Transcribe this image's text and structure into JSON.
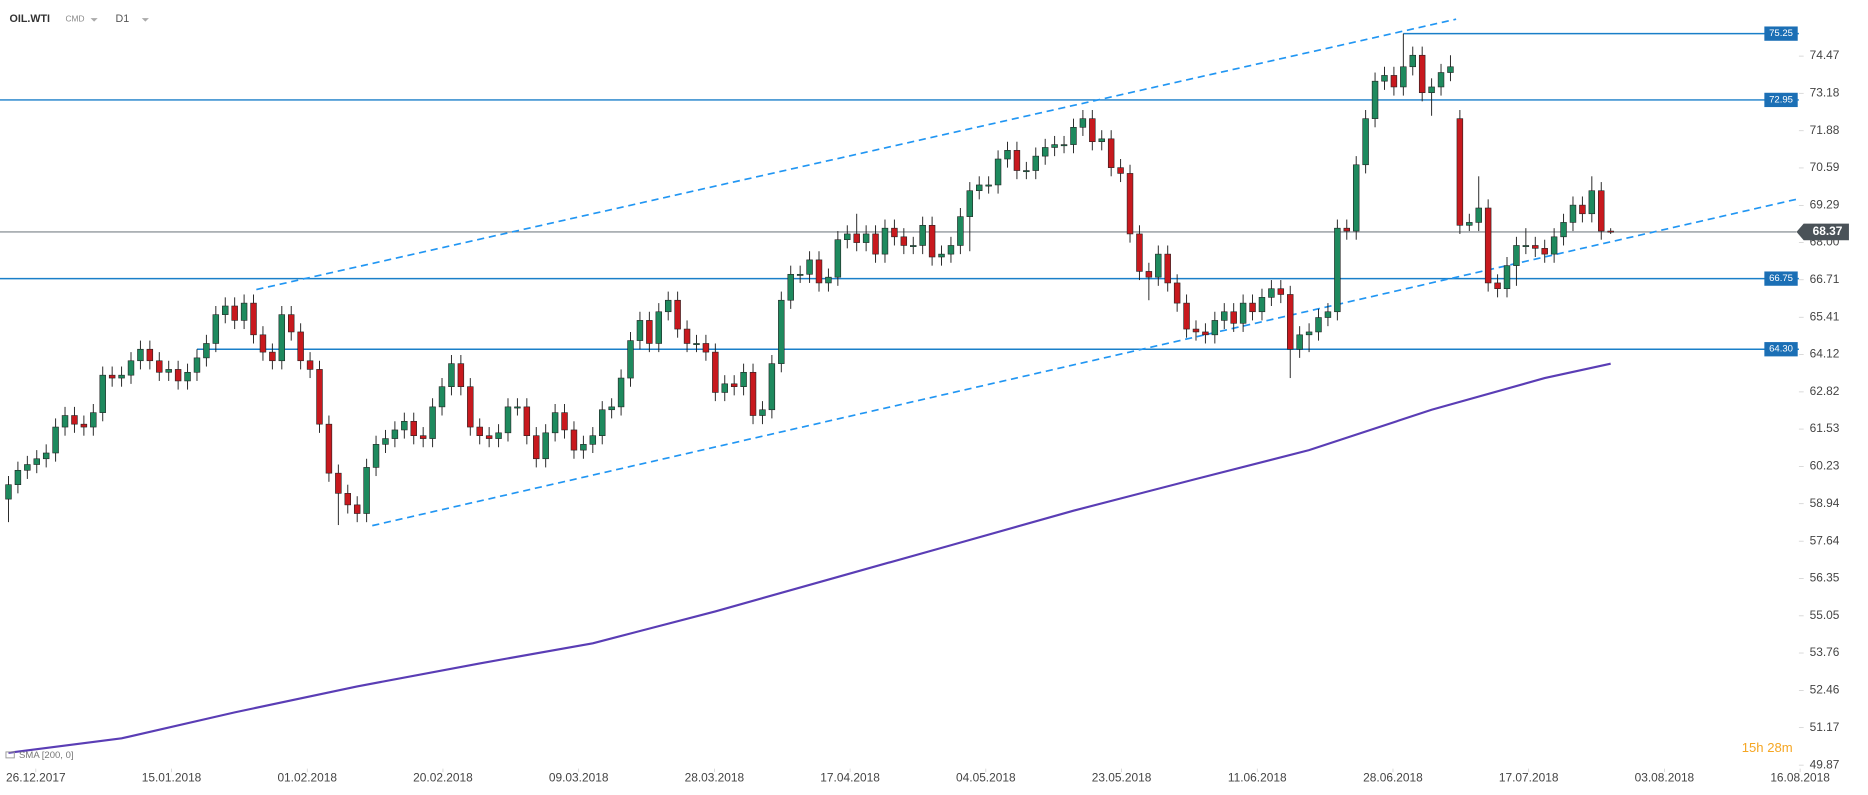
{
  "chart_data": {
    "type": "candlestick",
    "symbol": "OIL.WTI",
    "market": "CMD",
    "interval": "D1",
    "indicator": "SMA [200, 0]",
    "timer": "15h 28m",
    "xlim": [
      -0.9,
      192.5
    ],
    "ylim": [
      49.75,
      76.41
    ],
    "yticks": [
      74.47,
      73.18,
      71.88,
      70.59,
      69.29,
      {
        "value": 68,
        "label": "68.00"
      },
      66.71,
      65.41,
      64.12,
      62.82,
      61.53,
      60.23,
      58.94,
      57.64,
      56.35,
      55.05,
      53.76,
      52.46,
      51.17,
      49.87
    ],
    "xticks": [
      {
        "value": 2.9,
        "label": "26.12.2017"
      },
      {
        "value": 17.3,
        "label": "15.01.2018"
      },
      {
        "value": 31.7,
        "label": "01.02.2018"
      },
      {
        "value": 46.1,
        "label": "20.02.2018"
      },
      {
        "value": 60.5,
        "label": "09.03.2018"
      },
      {
        "value": 74.9,
        "label": "28.03.2018"
      },
      {
        "value": 89.3,
        "label": "17.04.2018"
      },
      {
        "value": 103.7,
        "label": "04.05.2018"
      },
      {
        "value": 118.1,
        "label": "23.05.2018"
      },
      {
        "value": 132.5,
        "label": "11.06.2018"
      },
      {
        "value": 146.9,
        "label": "28.06.2018"
      },
      {
        "value": 161.3,
        "label": "17.07.2018"
      },
      {
        "value": 175.7,
        "label": "03.08.2018"
      },
      {
        "value": 190.1,
        "label": "16.08.2018"
      }
    ],
    "up_color": "#1e8a5e",
    "down_color": "#c8191e",
    "levels": [
      75.25,
      72.95,
      66.75,
      {
        "value": 64.3,
        "label": "64.30"
      }
    ],
    "level_color": "#1a7fc9",
    "last_price": 68.37,
    "trendlines": [
      {
        "x": [
          26.3,
          153.6
        ],
        "y": [
          66.37,
          75.75
        ]
      },
      {
        "x": [
          38.6,
          189.8
        ],
        "y": [
          58.18,
          69.51
        ]
      }
    ],
    "trend_color": "#2196f3",
    "sma": {
      "x": [
        0,
        12,
        24,
        37,
        50,
        62,
        75,
        88,
        100,
        113,
        126,
        138,
        151,
        163,
        170
      ],
      "values": [
        50.3,
        50.8,
        51.7,
        52.6,
        53.4,
        54.1,
        55.2,
        56.4,
        57.5,
        58.7,
        59.8,
        60.8,
        62.2,
        63.3,
        63.8
      ],
      "color": "#5a3db5"
    },
    "candles": [
      [
        59.1,
        59.9,
        58.3,
        59.6
      ],
      [
        59.6,
        60.4,
        59.3,
        60.1
      ],
      [
        60.1,
        60.6,
        59.8,
        60.3
      ],
      [
        60.3,
        60.8,
        60.0,
        60.5
      ],
      [
        60.5,
        61.0,
        60.2,
        60.7
      ],
      [
        60.7,
        61.9,
        60.4,
        61.6
      ],
      [
        61.6,
        62.3,
        61.3,
        62.0
      ],
      [
        62.0,
        62.3,
        61.4,
        61.7
      ],
      [
        61.7,
        62.0,
        61.3,
        61.6
      ],
      [
        61.6,
        62.4,
        61.3,
        62.1
      ],
      [
        62.1,
        63.7,
        61.8,
        63.4
      ],
      [
        63.4,
        63.7,
        63.0,
        63.3
      ],
      [
        63.3,
        63.7,
        63.0,
        63.4
      ],
      [
        63.4,
        64.2,
        63.1,
        63.9
      ],
      [
        63.9,
        64.6,
        63.6,
        64.3
      ],
      [
        64.3,
        64.6,
        63.6,
        63.9
      ],
      [
        63.9,
        64.2,
        63.2,
        63.5
      ],
      [
        63.5,
        63.9,
        63.2,
        63.6
      ],
      [
        63.6,
        63.9,
        62.9,
        63.2
      ],
      [
        63.2,
        63.8,
        62.9,
        63.5
      ],
      [
        63.5,
        64.3,
        63.2,
        64.0
      ],
      [
        64.0,
        64.8,
        63.7,
        64.5
      ],
      [
        64.5,
        65.8,
        64.2,
        65.5
      ],
      [
        65.5,
        66.1,
        65.2,
        65.8
      ],
      [
        65.8,
        66.1,
        65.0,
        65.3
      ],
      [
        65.3,
        66.2,
        65.0,
        65.9
      ],
      [
        65.9,
        66.2,
        64.5,
        64.8
      ],
      [
        64.8,
        65.1,
        63.9,
        64.2
      ],
      [
        64.2,
        64.5,
        63.6,
        63.9
      ],
      [
        63.9,
        65.8,
        63.6,
        65.5
      ],
      [
        65.5,
        65.8,
        64.6,
        64.9
      ],
      [
        64.9,
        65.2,
        63.6,
        63.9
      ],
      [
        63.9,
        64.2,
        63.3,
        63.6
      ],
      [
        63.6,
        63.9,
        61.4,
        61.7
      ],
      [
        61.7,
        62.0,
        59.7,
        60.0
      ],
      [
        60.0,
        60.3,
        58.2,
        59.3
      ],
      [
        59.3,
        59.6,
        58.6,
        58.9
      ],
      [
        58.9,
        59.2,
        58.3,
        58.6
      ],
      [
        58.6,
        60.5,
        58.3,
        60.2
      ],
      [
        60.2,
        61.3,
        59.9,
        61.0
      ],
      [
        61.0,
        61.5,
        60.7,
        61.2
      ],
      [
        61.2,
        61.8,
        60.9,
        61.5
      ],
      [
        61.5,
        62.1,
        61.2,
        61.8
      ],
      [
        61.8,
        62.1,
        61.0,
        61.3
      ],
      [
        61.3,
        61.6,
        60.9,
        61.2
      ],
      [
        61.2,
        62.6,
        60.9,
        62.3
      ],
      [
        62.3,
        63.3,
        62.0,
        63.0
      ],
      [
        63.0,
        64.1,
        62.7,
        63.8
      ],
      [
        63.8,
        64.1,
        62.7,
        63.0
      ],
      [
        63.0,
        63.3,
        61.3,
        61.6
      ],
      [
        61.6,
        61.9,
        61.0,
        61.3
      ],
      [
        61.3,
        61.6,
        60.9,
        61.2
      ],
      [
        61.2,
        61.7,
        60.9,
        61.4
      ],
      [
        61.4,
        62.6,
        61.1,
        62.3
      ],
      [
        62.3,
        62.6,
        62.0,
        62.3
      ],
      [
        62.3,
        62.6,
        61.0,
        61.3
      ],
      [
        61.3,
        61.6,
        60.2,
        60.5
      ],
      [
        60.5,
        61.7,
        60.2,
        61.4
      ],
      [
        61.4,
        62.4,
        61.1,
        62.1
      ],
      [
        62.1,
        62.4,
        61.2,
        61.5
      ],
      [
        61.5,
        61.8,
        60.5,
        60.8
      ],
      [
        60.8,
        61.3,
        60.5,
        61.0
      ],
      [
        61.0,
        61.6,
        60.7,
        61.3
      ],
      [
        61.3,
        62.5,
        61.0,
        62.2
      ],
      [
        62.2,
        62.6,
        61.9,
        62.3
      ],
      [
        62.3,
        63.6,
        62.0,
        63.3
      ],
      [
        63.3,
        64.9,
        63.0,
        64.6
      ],
      [
        64.6,
        65.6,
        64.3,
        65.3
      ],
      [
        65.3,
        65.6,
        64.2,
        64.5
      ],
      [
        64.5,
        65.9,
        64.2,
        65.6
      ],
      [
        65.6,
        66.3,
        65.3,
        66.0
      ],
      [
        66.0,
        66.3,
        64.7,
        65.0
      ],
      [
        65.0,
        65.3,
        64.2,
        64.5
      ],
      [
        64.5,
        64.8,
        64.2,
        64.5
      ],
      [
        64.5,
        64.8,
        63.9,
        64.2
      ],
      [
        64.2,
        64.5,
        62.5,
        62.8
      ],
      [
        62.8,
        63.4,
        62.5,
        63.1
      ],
      [
        63.1,
        63.4,
        62.7,
        63.0
      ],
      [
        63.0,
        63.8,
        62.7,
        63.5
      ],
      [
        63.5,
        63.8,
        61.7,
        62.0
      ],
      [
        62.0,
        62.5,
        61.7,
        62.2
      ],
      [
        62.2,
        64.1,
        61.9,
        63.8
      ],
      [
        63.8,
        66.3,
        63.5,
        66.0
      ],
      [
        66.0,
        67.2,
        65.7,
        66.9
      ],
      [
        66.9,
        67.2,
        66.6,
        66.9
      ],
      [
        66.9,
        67.7,
        66.6,
        67.4
      ],
      [
        67.4,
        67.7,
        66.3,
        66.6
      ],
      [
        66.6,
        67.1,
        66.3,
        66.8
      ],
      [
        66.8,
        68.4,
        66.5,
        68.1
      ],
      [
        68.1,
        68.6,
        67.8,
        68.3
      ],
      [
        68.3,
        69.0,
        67.7,
        68.0
      ],
      [
        68.0,
        68.6,
        67.7,
        68.3
      ],
      [
        68.3,
        68.6,
        67.3,
        67.6
      ],
      [
        67.6,
        68.8,
        67.3,
        68.5
      ],
      [
        68.5,
        68.8,
        67.9,
        68.2
      ],
      [
        68.2,
        68.5,
        67.6,
        67.9
      ],
      [
        67.9,
        68.2,
        67.6,
        67.9
      ],
      [
        67.9,
        68.9,
        67.6,
        68.6
      ],
      [
        68.6,
        68.9,
        67.2,
        67.5
      ],
      [
        67.5,
        67.9,
        67.2,
        67.6
      ],
      [
        67.6,
        68.2,
        67.3,
        67.9
      ],
      [
        67.9,
        69.2,
        67.6,
        68.9
      ],
      [
        68.9,
        70.1,
        67.7,
        69.8
      ],
      [
        69.8,
        70.3,
        69.5,
        70.0
      ],
      [
        70.0,
        70.3,
        69.7,
        70.0
      ],
      [
        70.0,
        71.2,
        69.7,
        70.9
      ],
      [
        70.9,
        71.5,
        70.6,
        71.2
      ],
      [
        71.2,
        71.5,
        70.2,
        70.5
      ],
      [
        70.5,
        70.8,
        70.2,
        70.5
      ],
      [
        70.5,
        71.3,
        70.2,
        71.0
      ],
      [
        71.0,
        71.6,
        70.7,
        71.3
      ],
      [
        71.3,
        71.7,
        71.0,
        71.4
      ],
      [
        71.4,
        71.7,
        71.1,
        71.4
      ],
      [
        71.4,
        72.3,
        71.1,
        72.0
      ],
      [
        72.0,
        72.6,
        71.7,
        72.3
      ],
      [
        72.3,
        72.6,
        71.2,
        71.5
      ],
      [
        71.5,
        71.9,
        71.2,
        71.6
      ],
      [
        71.6,
        71.9,
        70.3,
        70.6
      ],
      [
        70.6,
        70.9,
        70.1,
        70.4
      ],
      [
        70.4,
        70.7,
        68.0,
        68.3
      ],
      [
        68.3,
        68.6,
        66.7,
        67.0
      ],
      [
        67.0,
        67.3,
        66.0,
        66.8
      ],
      [
        66.8,
        67.9,
        66.5,
        67.6
      ],
      [
        67.6,
        67.9,
        66.3,
        66.6
      ],
      [
        66.6,
        66.9,
        65.6,
        65.9
      ],
      [
        65.9,
        66.2,
        64.7,
        65.0
      ],
      [
        65.0,
        65.3,
        64.6,
        64.9
      ],
      [
        64.9,
        65.2,
        64.5,
        64.8
      ],
      [
        64.8,
        65.6,
        64.5,
        65.3
      ],
      [
        65.3,
        65.9,
        65.0,
        65.6
      ],
      [
        65.6,
        65.9,
        64.9,
        65.2
      ],
      [
        65.2,
        66.2,
        64.9,
        65.9
      ],
      [
        65.9,
        66.2,
        65.3,
        65.6
      ],
      [
        65.6,
        66.4,
        65.3,
        66.1
      ],
      [
        66.1,
        66.7,
        65.8,
        66.4
      ],
      [
        66.4,
        66.7,
        65.9,
        66.2
      ],
      [
        66.2,
        66.5,
        63.3,
        64.3
      ],
      [
        64.3,
        65.1,
        64.0,
        64.8
      ],
      [
        64.8,
        65.2,
        64.2,
        64.9
      ],
      [
        64.9,
        65.7,
        64.6,
        65.4
      ],
      [
        65.4,
        65.9,
        65.1,
        65.6
      ],
      [
        65.6,
        68.8,
        65.3,
        68.5
      ],
      [
        68.5,
        68.8,
        68.1,
        68.4
      ],
      [
        68.4,
        71.0,
        68.1,
        70.7
      ],
      [
        70.7,
        72.6,
        70.4,
        72.3
      ],
      [
        72.3,
        73.9,
        72.0,
        73.6
      ],
      [
        73.6,
        74.1,
        73.3,
        73.8
      ],
      [
        73.8,
        74.1,
        73.1,
        73.4
      ],
      [
        73.4,
        75.25,
        73.1,
        74.1
      ],
      [
        74.1,
        74.8,
        73.8,
        74.5
      ],
      [
        74.5,
        74.8,
        72.9,
        73.2
      ],
      [
        73.2,
        73.7,
        72.4,
        73.4
      ],
      [
        73.4,
        74.2,
        73.1,
        73.9
      ],
      [
        73.9,
        74.5,
        73.6,
        74.1
      ],
      [
        72.3,
        72.6,
        68.3,
        68.6
      ],
      [
        68.6,
        69.0,
        68.4,
        68.7
      ],
      [
        68.7,
        70.3,
        68.4,
        69.2
      ],
      [
        69.2,
        69.5,
        66.3,
        66.6
      ],
      [
        66.6,
        66.9,
        66.1,
        66.4
      ],
      [
        66.4,
        67.5,
        66.1,
        67.2
      ],
      [
        67.2,
        68.2,
        66.5,
        67.9
      ],
      [
        67.9,
        68.5,
        67.6,
        67.9
      ],
      [
        67.9,
        68.2,
        67.5,
        67.8
      ],
      [
        67.8,
        68.1,
        67.3,
        67.6
      ],
      [
        67.6,
        68.5,
        67.3,
        68.2
      ],
      [
        68.2,
        69.0,
        67.9,
        68.7
      ],
      [
        68.7,
        69.6,
        68.4,
        69.3
      ],
      [
        69.3,
        69.6,
        68.7,
        69.0
      ],
      [
        69.0,
        70.3,
        68.7,
        69.8
      ],
      [
        69.8,
        70.1,
        68.1,
        68.4
      ],
      [
        68.4,
        68.5,
        68.3,
        68.37
      ]
    ]
  }
}
